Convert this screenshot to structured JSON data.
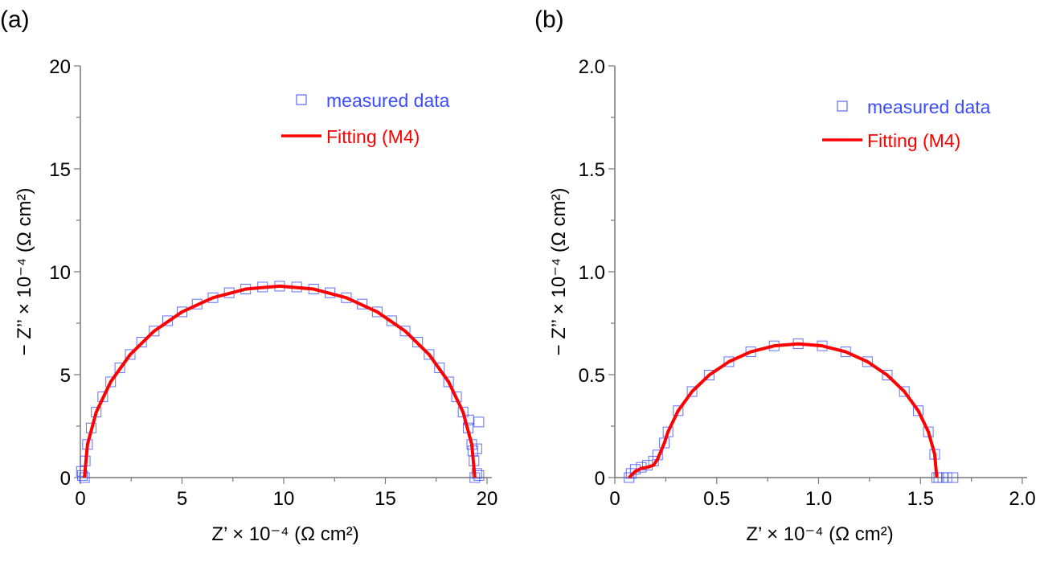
{
  "colors": {
    "measured": "#3a4cff",
    "fit": "#ff0000",
    "axis": "#777777",
    "text": "#000000"
  },
  "chart_data": [
    {
      "panel_label": "(a)",
      "type": "scatter",
      "xlabel": "Z’ × 10⁻⁴ (Ω cm²)",
      "ylabel": "− Z’’ × 10⁻⁴ (Ω cm²)",
      "xlim": [
        0,
        20
      ],
      "ylim": [
        0,
        20
      ],
      "xticks": [
        "0",
        "5",
        "10",
        "15",
        "20"
      ],
      "yticks": [
        "0",
        "5",
        "10",
        "15",
        "20"
      ],
      "xtick_values": [
        0,
        5,
        10,
        15,
        20
      ],
      "ytick_values": [
        0,
        5,
        10,
        15,
        20
      ],
      "minor_step": 2.5,
      "grid": false,
      "legend_placement": "top-right",
      "series": [
        {
          "name": "measured data",
          "marker": "open-square",
          "x": [
            0.05,
            0.1,
            0.2,
            0.24,
            0.35,
            0.53,
            0.78,
            1.1,
            1.49,
            1.94,
            2.45,
            3.01,
            3.63,
            4.29,
            5.0,
            5.74,
            6.52,
            7.32,
            8.13,
            8.96,
            9.8,
            10.64,
            11.47,
            12.28,
            13.08,
            13.86,
            14.6,
            15.31,
            15.97,
            16.59,
            17.15,
            17.66,
            18.11,
            18.5,
            18.82,
            19.07,
            19.1,
            19.25,
            19.3,
            19.36,
            19.4,
            19.5,
            19.5,
            19.6,
            19.6
          ],
          "y": [
            0.3,
            0.1,
            0.0,
            0.81,
            1.61,
            2.41,
            3.18,
            3.93,
            4.65,
            5.33,
            5.98,
            6.58,
            7.12,
            7.62,
            8.05,
            8.43,
            8.74,
            8.98,
            9.16,
            9.26,
            9.3,
            9.26,
            9.16,
            8.98,
            8.74,
            8.43,
            8.05,
            7.62,
            7.12,
            6.58,
            5.98,
            5.33,
            4.65,
            3.93,
            3.18,
            2.41,
            2.8,
            1.61,
            1.3,
            0.81,
            0.0,
            1.4,
            0.2,
            0.1,
            2.7
          ]
        },
        {
          "name": "Fitting (M4)",
          "marker": "line",
          "x": [
            0.2,
            0.35,
            0.78,
            1.49,
            2.45,
            3.63,
            5.0,
            6.52,
            8.13,
            9.8,
            11.47,
            13.08,
            14.6,
            15.97,
            17.15,
            18.11,
            18.82,
            19.25,
            19.4
          ],
          "y": [
            0.0,
            1.61,
            3.18,
            4.65,
            5.98,
            7.12,
            8.05,
            8.74,
            9.16,
            9.3,
            9.16,
            8.74,
            8.05,
            7.12,
            5.98,
            4.65,
            3.18,
            1.61,
            0.0
          ]
        }
      ]
    },
    {
      "panel_label": "(b)",
      "type": "scatter",
      "xlabel": "Z’ × 10⁻⁴ (Ω cm²)",
      "ylabel": "− Z’’ × 10⁻⁴ (Ω cm²)",
      "xlim": [
        0,
        2.0
      ],
      "ylim": [
        0,
        2.0
      ],
      "xticks": [
        "0",
        "0.5",
        "1.0",
        "1.5",
        "2.0"
      ],
      "yticks": [
        "0",
        "0.5",
        "1.0",
        "1.5",
        "2.0"
      ],
      "xtick_values": [
        0,
        0.5,
        1.0,
        1.5,
        2.0
      ],
      "ytick_values": [
        0,
        0.5,
        1.0,
        1.5,
        2.0
      ],
      "minor_step": 0.25,
      "grid": false,
      "legend_placement": "top-right",
      "series": [
        {
          "name": "measured data",
          "marker": "open-square",
          "x": [
            0.07,
            0.08,
            0.1,
            0.13,
            0.16,
            0.19,
            0.21,
            0.243,
            0.261,
            0.311,
            0.379,
            0.463,
            0.56,
            0.667,
            0.782,
            0.9,
            1.018,
            1.133,
            1.24,
            1.337,
            1.421,
            1.489,
            1.539,
            1.57,
            1.58,
            1.59,
            1.61,
            1.63,
            1.66
          ],
          "y": [
            0.0,
            0.02,
            0.04,
            0.05,
            0.06,
            0.08,
            0.11,
            0.168,
            0.222,
            0.325,
            0.418,
            0.498,
            0.563,
            0.611,
            0.64,
            0.65,
            0.64,
            0.611,
            0.563,
            0.498,
            0.418,
            0.325,
            0.222,
            0.113,
            0.0,
            0.0,
            0.0,
            0.0,
            0.0
          ]
        },
        {
          "name": "Fitting (M4)",
          "marker": "line",
          "x": [
            0.07,
            0.1,
            0.13,
            0.16,
            0.19,
            0.21,
            0.243,
            0.261,
            0.311,
            0.379,
            0.463,
            0.56,
            0.667,
            0.782,
            0.9,
            1.018,
            1.133,
            1.24,
            1.337,
            1.421,
            1.489,
            1.539,
            1.57,
            1.58
          ],
          "y": [
            0.0,
            0.03,
            0.045,
            0.05,
            0.06,
            0.09,
            0.168,
            0.222,
            0.325,
            0.418,
            0.498,
            0.563,
            0.611,
            0.64,
            0.65,
            0.64,
            0.611,
            0.563,
            0.498,
            0.418,
            0.325,
            0.222,
            0.113,
            0.0
          ]
        }
      ]
    }
  ]
}
